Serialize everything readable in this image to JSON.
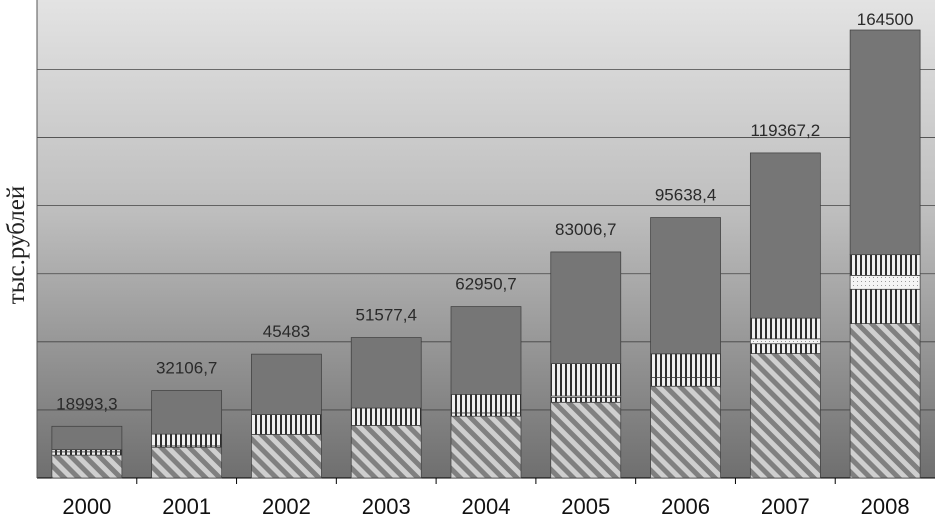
{
  "chart_data": {
    "type": "bar",
    "stacked": true,
    "title": "",
    "xlabel": "",
    "ylabel": "тыс.рублей",
    "ylim": [
      0,
      170000
    ],
    "grid": true,
    "legend": "none",
    "categories": [
      "2000",
      "2001",
      "2002",
      "2003",
      "2004",
      "2005",
      "2006",
      "2007",
      "2008"
    ],
    "total_labels": [
      "18993,3",
      "32106,7",
      "45483",
      "51577,4",
      "62950,7",
      "83006,7",
      "95638,4",
      "119367,2",
      "164500"
    ],
    "totals": [
      18993.3,
      32106.7,
      45483,
      51577.4,
      62950.7,
      83006.7,
      95638.4,
      119367.2,
      164500
    ],
    "series": [
      {
        "pattern": "diagonal-hatch",
        "values": [
          8400,
          11300,
          16000,
          19300,
          22700,
          27800,
          33700,
          45700,
          56700
        ]
      },
      {
        "pattern": "vertical-lines",
        "values": [
          1200,
          500,
          0,
          0,
          1200,
          1800,
          3200,
          3600,
          12600
        ]
      },
      {
        "pattern": "dotted",
        "values": [
          0,
          0,
          0,
          0,
          0,
          500,
          0,
          1800,
          5100
        ]
      },
      {
        "pattern": "vertical-lines",
        "values": [
          800,
          4300,
          7300,
          6400,
          6800,
          11900,
          8700,
          7600,
          7600
        ]
      },
      {
        "pattern": "solid-dark",
        "values": [
          8593.3,
          16006.7,
          22183,
          25877.4,
          32250.7,
          41006.7,
          50038.4,
          60667.2,
          82500
        ]
      }
    ],
    "colors": {
      "bar": "#767676",
      "bar_stroke": "#3c3c3c",
      "hatch": "#c8c8c8",
      "grid": "#444444"
    }
  }
}
